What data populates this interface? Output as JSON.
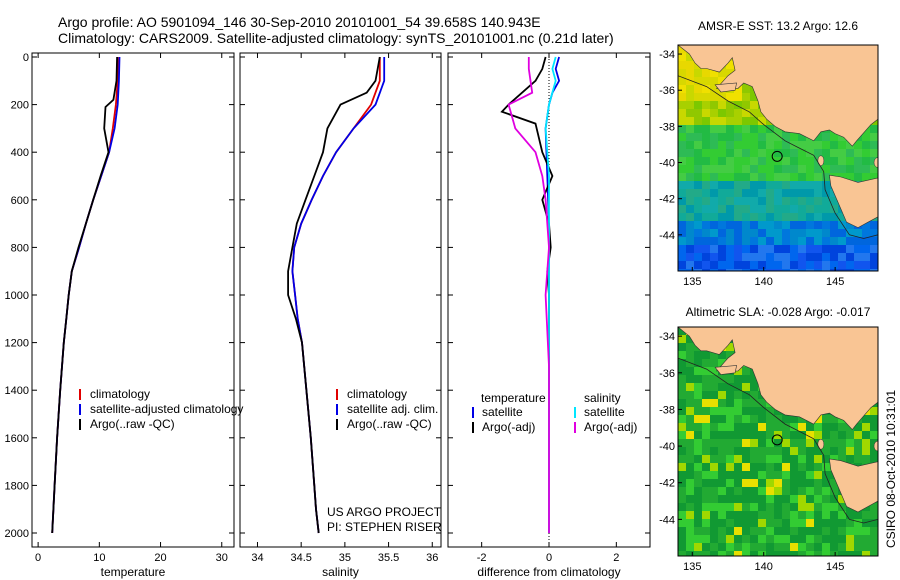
{
  "header": {
    "line1": "Argo profile: AO 5901094_146 30-Sep-2010 20101001_54 39.658S 140.943E",
    "line2": "Climatology: CARS2009. Satellite-adjusted climatology: synTS_20101001.nc (0.21d later)"
  },
  "colors": {
    "climatology": "#e00000",
    "satellite": "#0000e6",
    "argo": "#000000",
    "salinity_satellite": "#00e6ff",
    "salinity_argo": "#e000e0",
    "land": "#f9c594"
  },
  "chart_data": [
    {
      "type": "line",
      "name": "temperature-panel",
      "xlabel": "temperature",
      "xlim": [
        -1,
        32
      ],
      "ylim": [
        2000,
        0
      ],
      "xticks": [
        0,
        10,
        20,
        30
      ],
      "yticks": [
        0,
        200,
        400,
        600,
        800,
        1000,
        1200,
        1400,
        1600,
        1800,
        2000
      ],
      "legend_entries": [
        "climatology",
        "satellite-adjusted climatology",
        "Argo(..raw -QC)"
      ],
      "series": [
        {
          "color_key": "climatology",
          "x": [
            13.0,
            13.0,
            12.7,
            12.2,
            11.6,
            10.3,
            9.0,
            7.8,
            6.7,
            5.5,
            5.0,
            4.6,
            4.2,
            3.6,
            3.1,
            2.7,
            2.5,
            2.3
          ],
          "y": [
            0,
            100,
            200,
            300,
            400,
            500,
            600,
            700,
            800,
            900,
            1000,
            1100,
            1200,
            1400,
            1600,
            1800,
            1900,
            2000
          ]
        },
        {
          "color_key": "satellite",
          "x": [
            13.3,
            13.2,
            13.0,
            12.5,
            11.6,
            10.3,
            9.0,
            7.8,
            6.7,
            5.5,
            5.0,
            4.6,
            4.2,
            3.6,
            3.1,
            2.7,
            2.5,
            2.3
          ],
          "y": [
            0,
            100,
            200,
            300,
            400,
            500,
            600,
            700,
            800,
            900,
            1000,
            1100,
            1200,
            1400,
            1600,
            1800,
            1900,
            2000
          ]
        },
        {
          "color_key": "argo",
          "x": [
            12.9,
            12.8,
            12.3,
            11.0,
            10.8,
            11.5,
            10.2,
            9.0,
            7.8,
            6.6,
            5.5,
            5.0,
            4.6,
            4.2,
            3.6,
            3.1,
            2.7,
            2.5,
            2.3
          ],
          "y": [
            0,
            100,
            180,
            210,
            300,
            400,
            500,
            600,
            700,
            800,
            900,
            1000,
            1100,
            1200,
            1400,
            1600,
            1800,
            1900,
            2000
          ]
        }
      ]
    },
    {
      "type": "line",
      "name": "salinity-panel",
      "xlabel": "salinity",
      "xlim": [
        33.8,
        36.1
      ],
      "ylim": [
        2000,
        0
      ],
      "xticks": [
        34,
        34.5,
        35,
        35.5,
        36
      ],
      "xtick_labels": [
        "34",
        "34.5",
        "35",
        "35.5",
        "36"
      ],
      "legend_entries": [
        "climatology",
        "satellite adj. clim.",
        "Argo(..raw -QC)"
      ],
      "annotations": [
        "US ARGO PROJECT",
        "PI: STEPHEN RISER"
      ],
      "series": [
        {
          "color_key": "climatology",
          "x": [
            35.4,
            35.4,
            35.3,
            35.1,
            34.9,
            34.75,
            34.62,
            34.5,
            34.42,
            34.4,
            34.43,
            34.46,
            34.51,
            34.56,
            34.61,
            34.65,
            34.67,
            34.7
          ],
          "y": [
            0,
            100,
            200,
            300,
            400,
            500,
            600,
            700,
            800,
            900,
            1000,
            1100,
            1200,
            1400,
            1600,
            1800,
            1900,
            2000
          ]
        },
        {
          "color_key": "satellite",
          "x": [
            35.45,
            35.45,
            35.35,
            35.1,
            34.9,
            34.75,
            34.62,
            34.5,
            34.42,
            34.4,
            34.43,
            34.46,
            34.51,
            34.56,
            34.61,
            34.65,
            34.67,
            34.7
          ],
          "y": [
            0,
            100,
            200,
            300,
            400,
            500,
            600,
            700,
            800,
            900,
            1000,
            1100,
            1200,
            1400,
            1600,
            1800,
            1900,
            2000
          ]
        },
        {
          "color_key": "argo",
          "x": [
            35.4,
            35.35,
            35.25,
            34.95,
            34.8,
            34.75,
            34.65,
            34.55,
            34.45,
            34.4,
            34.35,
            34.35,
            34.44,
            34.51,
            34.56,
            34.61,
            34.65,
            34.67,
            34.7
          ],
          "y": [
            0,
            100,
            150,
            200,
            300,
            400,
            500,
            600,
            700,
            800,
            900,
            1000,
            1100,
            1200,
            1400,
            1600,
            1800,
            1900,
            2000
          ]
        }
      ]
    },
    {
      "type": "line",
      "name": "difference-panel",
      "xlabel": "difference from climatology",
      "xlim": [
        -3,
        3
      ],
      "ylim": [
        2000,
        0
      ],
      "xticks": [
        -2,
        0,
        2
      ],
      "legend_headers": [
        "temperature",
        "salinity"
      ],
      "legend_entries": [
        "satellite",
        "Argo(-adj)",
        "satellite",
        "Argo(-adj)"
      ],
      "series": [
        {
          "name": "satellite",
          "legend_group": "temperature",
          "color_key": "satellite",
          "x": [
            0.3,
            0.2,
            0.3,
            0.1,
            0.0,
            -0.1,
            -0.05,
            0.0,
            0.0,
            0.0,
            0.0,
            0.0,
            0.0,
            0.0
          ],
          "y": [
            0,
            50,
            100,
            150,
            200,
            300,
            500,
            700,
            900,
            1000,
            1200,
            1500,
            1800,
            2000
          ]
        },
        {
          "name": "Argo(-adj)",
          "legend_group": "temperature",
          "color_key": "argo",
          "x": [
            -0.1,
            -0.2,
            -0.4,
            -1.2,
            -1.4,
            -0.4,
            -0.2,
            0.1,
            -0.2,
            0.0,
            0.05,
            -0.05,
            0.0,
            0.0,
            0.0,
            0.0
          ],
          "y": [
            0,
            50,
            100,
            200,
            230,
            280,
            400,
            500,
            600,
            700,
            800,
            900,
            1000,
            1300,
            1700,
            2000
          ]
        },
        {
          "name": "satellite",
          "legend_group": "salinity",
          "color_key": "salinity_satellite",
          "x": [
            0.2,
            0.1,
            0.2,
            0.0,
            -0.1,
            0.0,
            0.0,
            0.0,
            0.0,
            0.0,
            0.0,
            0.0,
            0.0
          ],
          "y": [
            0,
            50,
            100,
            200,
            300,
            500,
            700,
            900,
            1000,
            1200,
            1500,
            1800,
            2000
          ]
        },
        {
          "name": "Argo(-adj)",
          "legend_group": "salinity",
          "color_key": "salinity_argo",
          "x": [
            -0.6,
            -0.6,
            -0.5,
            -1.2,
            -1.0,
            -0.4,
            -0.2,
            -0.1,
            0.0,
            -0.1,
            0.0,
            0.0
          ],
          "y": [
            0,
            50,
            150,
            200,
            300,
            400,
            500,
            600,
            800,
            1000,
            1300,
            2000
          ]
        }
      ]
    },
    {
      "type": "heatmap",
      "name": "sst-map",
      "title": "AMSR-E SST: 13.2 Argo: 12.6",
      "xlim": [
        134,
        148
      ],
      "ylim": [
        -46,
        -33.5
      ],
      "xticks": [
        135,
        140,
        145
      ],
      "yticks": [
        -34,
        -36,
        -38,
        -40,
        -42,
        -44
      ],
      "marker": {
        "lon": 140.943,
        "lat": -39.658
      }
    },
    {
      "type": "heatmap",
      "name": "sla-map",
      "title": "Altimetric SLA: -0.028 Argo: -0.017",
      "xlim": [
        134,
        148
      ],
      "ylim": [
        -46,
        -33.5
      ],
      "xticks": [
        135,
        140,
        145
      ],
      "yticks": [
        -34,
        -36,
        -38,
        -40,
        -42,
        -44
      ],
      "marker": {
        "lon": 140.943,
        "lat": -39.658
      }
    }
  ],
  "footer": {
    "credit": "CSIRO 08-Oct-2010 10:31:01"
  }
}
